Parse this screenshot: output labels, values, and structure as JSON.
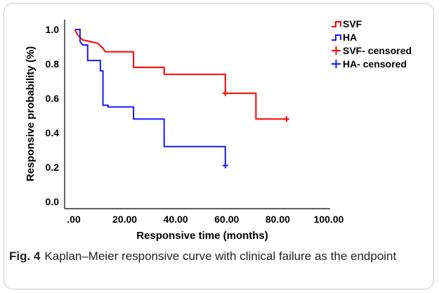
{
  "chart_data": {
    "type": "line",
    "subtype": "kaplan-meier-step",
    "xlabel": "Responsive time (months)",
    "ylabel": "Responsive probability (%)",
    "xlim": [
      0,
      100
    ],
    "ylim": [
      0,
      1.05
    ],
    "x_ticks": [
      ".00",
      "20.00",
      "40.00",
      "60.00",
      "80.00",
      "100.00"
    ],
    "x_tick_values": [
      0,
      20,
      40,
      60,
      80,
      100
    ],
    "y_ticks": [
      "0.0",
      "0.2",
      "0.4",
      "0.6",
      "0.8",
      "1.0"
    ],
    "y_tick_values": [
      0.0,
      0.2,
      0.4,
      0.6,
      0.8,
      1.0
    ],
    "grid": false,
    "legend_position": "top-right",
    "colors": {
      "SVF": "#ff0000",
      "HA": "#1a1aff",
      "axis": "#000000"
    },
    "series": [
      {
        "name": "SVF",
        "color": "#ff0000",
        "step_points": [
          [
            1,
            1.0
          ],
          [
            2,
            0.97
          ],
          [
            4,
            0.94
          ],
          [
            10,
            0.92
          ],
          [
            12,
            0.89
          ],
          [
            13,
            0.87
          ],
          [
            24,
            0.87
          ],
          [
            24,
            0.78
          ],
          [
            36,
            0.78
          ],
          [
            36,
            0.74
          ],
          [
            60,
            0.74
          ],
          [
            60,
            0.63
          ],
          [
            72,
            0.63
          ],
          [
            72,
            0.48
          ],
          [
            84,
            0.48
          ]
        ],
        "censored": [
          [
            60,
            0.63
          ],
          [
            84,
            0.48
          ]
        ]
      },
      {
        "name": "HA",
        "color": "#1a1aff",
        "step_points": [
          [
            1,
            1.0
          ],
          [
            3,
            1.0
          ],
          [
            3,
            0.93
          ],
          [
            4,
            0.91
          ],
          [
            6,
            0.91
          ],
          [
            6,
            0.82
          ],
          [
            11,
            0.82
          ],
          [
            11,
            0.76
          ],
          [
            12,
            0.76
          ],
          [
            12,
            0.56
          ],
          [
            14,
            0.56
          ],
          [
            14,
            0.55
          ],
          [
            24,
            0.55
          ],
          [
            24,
            0.48
          ],
          [
            36,
            0.48
          ],
          [
            36,
            0.32
          ],
          [
            60,
            0.32
          ],
          [
            60,
            0.21
          ]
        ],
        "censored": [
          [
            60,
            0.21
          ]
        ]
      }
    ],
    "legend": [
      {
        "label": "SVF",
        "marker": "step",
        "color": "#ff0000"
      },
      {
        "label": "HA",
        "marker": "step",
        "color": "#1a1aff"
      },
      {
        "label": "SVF- censored",
        "marker": "plus",
        "color": "#ff0000"
      },
      {
        "label": "HA- censored",
        "marker": "plus",
        "color": "#1a1aff"
      }
    ]
  },
  "caption": {
    "label": "Fig. 4",
    "text": "Kaplan–Meier responsive curve with clinical failure as the endpoint"
  }
}
